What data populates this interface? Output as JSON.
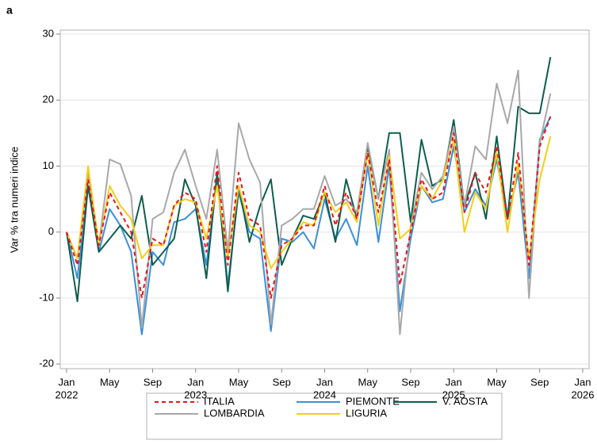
{
  "chart_data": {
    "type": "line",
    "panel_label": "a",
    "y_label": "Var % tra numeri indice",
    "x": [
      "2022-01",
      "2022-02",
      "2022-03",
      "2022-04",
      "2022-05",
      "2022-06",
      "2022-07",
      "2022-08",
      "2022-09",
      "2022-10",
      "2022-11",
      "2022-12",
      "2023-01",
      "2023-02",
      "2023-03",
      "2023-04",
      "2023-05",
      "2023-06",
      "2023-07",
      "2023-08",
      "2023-09",
      "2023-10",
      "2023-11",
      "2023-12",
      "2024-01",
      "2024-02",
      "2024-03",
      "2024-04",
      "2024-05",
      "2024-06",
      "2024-07",
      "2024-08",
      "2024-09",
      "2024-10",
      "2024-11",
      "2024-12",
      "2025-01",
      "2025-02",
      "2025-03",
      "2025-04",
      "2025-05",
      "2025-06",
      "2025-07",
      "2025-08",
      "2025-09",
      "2025-10"
    ],
    "xlim": [
      "2022-01",
      "2026-01"
    ],
    "xticks": [
      {
        "value": "2022-01",
        "label": [
          "Jan",
          "2022"
        ]
      },
      {
        "value": "2022-05",
        "label": [
          "May"
        ]
      },
      {
        "value": "2022-09",
        "label": [
          "Sep"
        ]
      },
      {
        "value": "2023-01",
        "label": [
          "Jan",
          "2023"
        ]
      },
      {
        "value": "2023-05",
        "label": [
          "May"
        ]
      },
      {
        "value": "2023-09",
        "label": [
          "Sep"
        ]
      },
      {
        "value": "2024-01",
        "label": [
          "Jan",
          "2024"
        ]
      },
      {
        "value": "2024-05",
        "label": [
          "May"
        ]
      },
      {
        "value": "2024-09",
        "label": [
          "Sep"
        ]
      },
      {
        "value": "2025-01",
        "label": [
          "Jan",
          "2025"
        ]
      },
      {
        "value": "2025-05",
        "label": [
          "May"
        ]
      },
      {
        "value": "2025-09",
        "label": [
          "Sep"
        ]
      },
      {
        "value": "2026-01",
        "label": [
          "Jan",
          "2026"
        ]
      }
    ],
    "ylim": [
      -20.7,
      30.6
    ],
    "yticks": [
      -20,
      -10,
      0,
      10,
      20,
      30
    ],
    "grid": true,
    "legend": "bottom",
    "series": [
      {
        "name": "ITALIA",
        "color": "#e8141c",
        "dashed": true,
        "values": [
          0,
          -5,
          8,
          -2,
          6,
          3,
          0,
          -10,
          -1,
          -2,
          4,
          6,
          5,
          -3,
          10,
          -5,
          9,
          2,
          1,
          -10,
          -2,
          -1,
          1,
          1,
          7,
          1,
          6,
          2,
          12,
          3,
          11,
          -8,
          0,
          8,
          5,
          6,
          15,
          3,
          9,
          6,
          13,
          2,
          12,
          -5,
          13,
          17.5
        ]
      },
      {
        "name": "PIEMONTE",
        "color": "#3a8fdc",
        "values": [
          0,
          -7,
          7,
          -3,
          3.5,
          1,
          -3,
          -15.5,
          -3,
          -5,
          1.5,
          2,
          3.5,
          -5,
          8,
          -8,
          6,
          0,
          -1,
          -15,
          -1,
          -1.5,
          0,
          -2.5,
          5,
          -1,
          2,
          -2,
          10,
          -1.5,
          10,
          -12,
          -1,
          7,
          4.5,
          5,
          13,
          3,
          6.5,
          4,
          11,
          2,
          9,
          -7,
          14,
          17.5
        ]
      },
      {
        "name": "V. AOSTA",
        "color": "#0d5e4c",
        "values": [
          0,
          -10.5,
          7,
          -3,
          -1,
          1,
          -1,
          5.5,
          -5,
          -3,
          -1,
          8,
          4,
          -7,
          9,
          -9,
          7,
          -1.5,
          4,
          8,
          -5,
          -1,
          2.5,
          2,
          6,
          -1.5,
          8,
          2,
          13,
          5,
          15,
          15,
          1.5,
          14,
          7,
          8,
          17,
          4,
          9,
          2,
          14.5,
          2,
          19,
          18,
          18,
          26.5
        ]
      },
      {
        "name": "LOMBARDIA",
        "color": "#a8a8a8",
        "values": [
          0,
          -4,
          9,
          -2,
          11,
          10.3,
          5.5,
          -14.5,
          2,
          3,
          9,
          12.5,
          7,
          2,
          12.5,
          -3,
          16.5,
          11,
          7.5,
          -14,
          1,
          2,
          3.5,
          3.5,
          8.5,
          4,
          5,
          3,
          13.5,
          5,
          12.5,
          -15.5,
          1,
          9,
          6.5,
          8.5,
          16,
          4,
          13,
          11,
          22.5,
          16.5,
          24.5,
          -10,
          13.5,
          21
        ]
      },
      {
        "name": "LIGURIA",
        "color": "#f3cf16",
        "values": [
          0,
          -4,
          10,
          -2,
          7,
          4,
          2,
          -4,
          -2,
          -2,
          4,
          5,
          4.5,
          -1,
          7,
          -4,
          7,
          1,
          0,
          -5.5,
          -3,
          -1,
          1.5,
          1,
          6,
          3,
          4.5,
          1.5,
          12,
          1,
          11.5,
          -1,
          0.5,
          7,
          5,
          8,
          14,
          0,
          6,
          3.5,
          12,
          0,
          10.5,
          -4,
          8,
          14.5
        ]
      }
    ]
  }
}
